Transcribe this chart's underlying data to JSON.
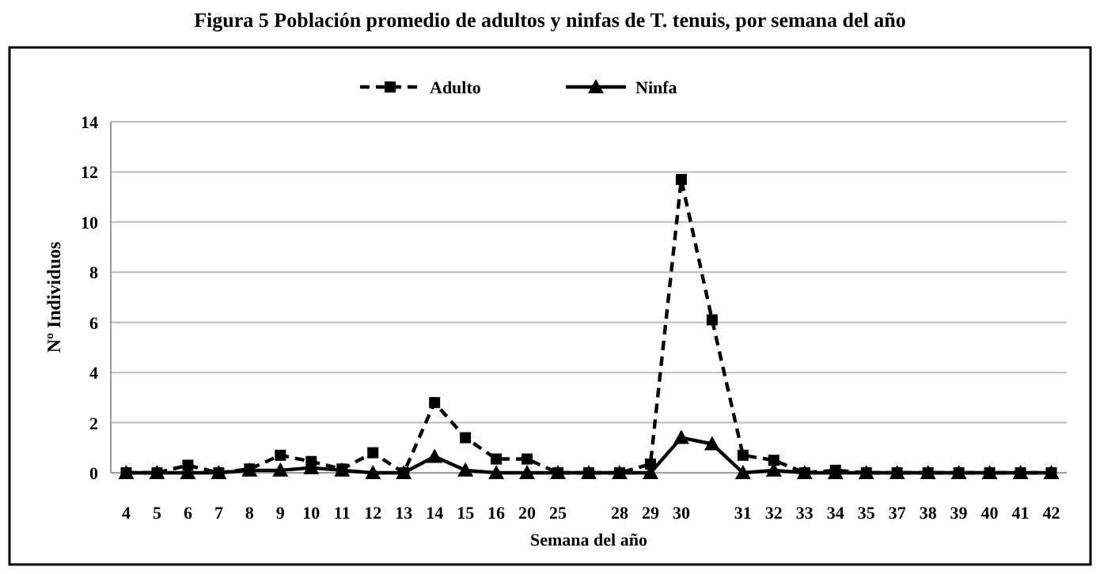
{
  "chart_data": {
    "type": "line",
    "title": "Figura 5 Población promedio de adultos y ninfas de T. tenuis, por semana del año",
    "xlabel": "Semana del año",
    "ylabel": "Nº Individuos",
    "categories": [
      "4",
      "5",
      "6",
      "7",
      "8",
      "9",
      "10",
      "11",
      "12",
      "13",
      "14",
      "15",
      "16",
      "20",
      "25",
      null,
      "28",
      "29",
      "30",
      null,
      "31",
      "32",
      "33",
      "34",
      "35",
      "37",
      "38",
      "39",
      "40",
      "41",
      "42"
    ],
    "series": [
      {
        "name": "Adulto",
        "color": "#000000",
        "marker": "square",
        "line_style": "dashed",
        "values": [
          0,
          0,
          0.3,
          0,
          0.15,
          0.7,
          0.45,
          0.15,
          0.8,
          0,
          2.8,
          1.4,
          0.55,
          0.55,
          0,
          0,
          0,
          0.35,
          11.7,
          6.1,
          0.7,
          0.5,
          0,
          0.1,
          0,
          0,
          0,
          0,
          0,
          0,
          0
        ]
      },
      {
        "name": "Ninfa",
        "color": "#000000",
        "marker": "triangle",
        "line_style": "solid",
        "values": [
          0,
          0,
          0,
          0,
          0.1,
          0.1,
          0.2,
          0.1,
          0,
          0,
          0.65,
          0.1,
          0,
          0,
          0,
          0,
          0,
          0,
          1.4,
          1.15,
          0,
          0.1,
          0,
          0,
          0,
          0,
          0,
          0,
          0,
          0,
          0
        ]
      }
    ],
    "ylim": [
      0,
      14
    ],
    "yticks": [
      0,
      2,
      4,
      6,
      8,
      10,
      12,
      14
    ],
    "grid": "y",
    "legend": "top"
  }
}
